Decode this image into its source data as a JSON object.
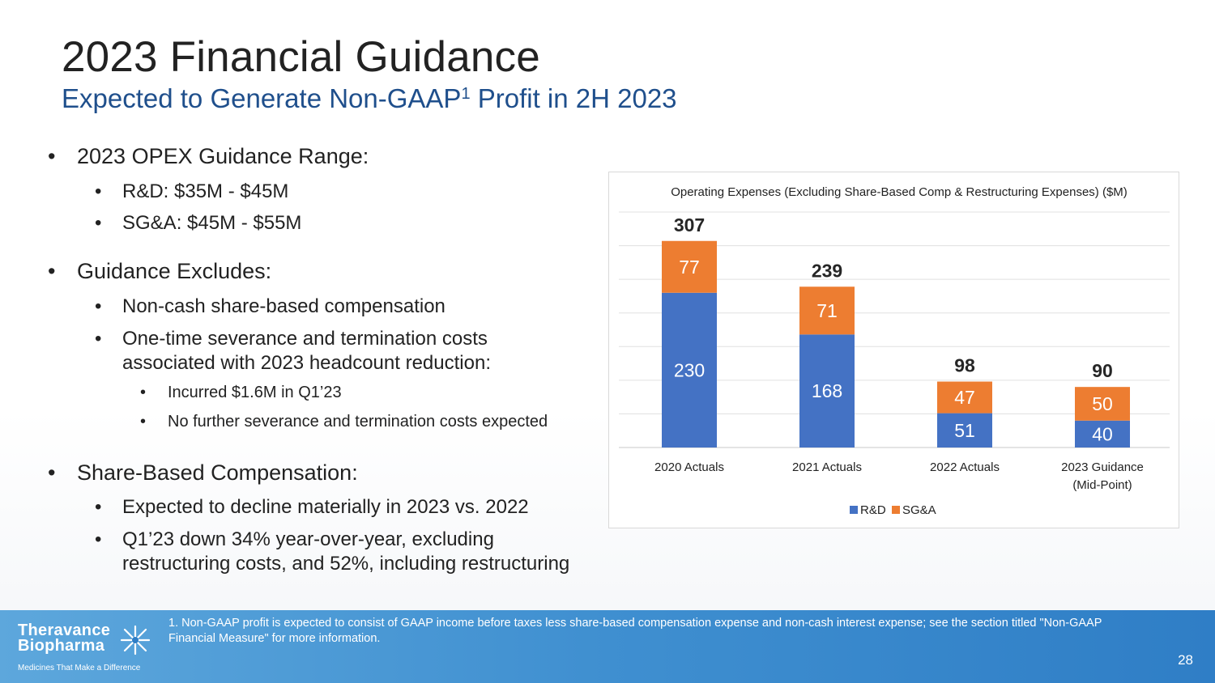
{
  "header": {
    "title": "2023 Financial Guidance",
    "subtitle_pre": "Expected to Generate Non-GAAP",
    "subtitle_sup": "1",
    "subtitle_post": " Profit in 2H 2023"
  },
  "bullets": {
    "opex_heading": "2023 OPEX Guidance Range:",
    "opex_rd": "R&D: $35M - $45M",
    "opex_sga": "SG&A: $45M - $55M",
    "excludes_heading": "Guidance Excludes:",
    "excl_noncash": "Non-cash share-based compensation",
    "excl_onetime_1": "One-time severance and termination costs",
    "excl_onetime_2": "associated with 2023 headcount reduction:",
    "incurred": "Incurred $1.6M in Q1’23",
    "no_further": "No further severance and termination costs expected",
    "sbc_heading": "Share-Based Compensation:",
    "sbc_decline": "Expected to decline materially in 2023 vs. 2022",
    "sbc_q1_1": "Q1’23 down 34% year-over-year, excluding",
    "sbc_q1_2": "restructuring costs, and 52%, including restructuring"
  },
  "chart_data": {
    "type": "bar",
    "stacked": true,
    "title": "Operating Expenses (Excluding Share-Based Comp & Restructuring Expenses) ($M)",
    "categories": [
      [
        "2020 Actuals"
      ],
      [
        "2021 Actuals"
      ],
      [
        "2022 Actuals"
      ],
      [
        "2023 Guidance",
        "(Mid-Point)"
      ]
    ],
    "series": [
      {
        "name": "R&D",
        "values": [
          230,
          168,
          51,
          40
        ],
        "color": "#4472c4"
      },
      {
        "name": "SG&A",
        "values": [
          77,
          71,
          47,
          50
        ],
        "color": "#ed7d31"
      }
    ],
    "totals": [
      307,
      239,
      98,
      90
    ],
    "ylim": [
      0,
      350
    ],
    "grid": true,
    "legend": "bottom"
  },
  "footer": {
    "logo_line1": "Theravance",
    "logo_line2": "Biopharma",
    "logo_tagline": "Medicines That Make a Difference",
    "footnote": "1. Non-GAAP profit is expected to consist of GAAP income before taxes less share-based compensation expense and non-cash interest expense; see the section titled \"Non-GAAP Financial Measure\" for more information.",
    "page_number": "28"
  }
}
